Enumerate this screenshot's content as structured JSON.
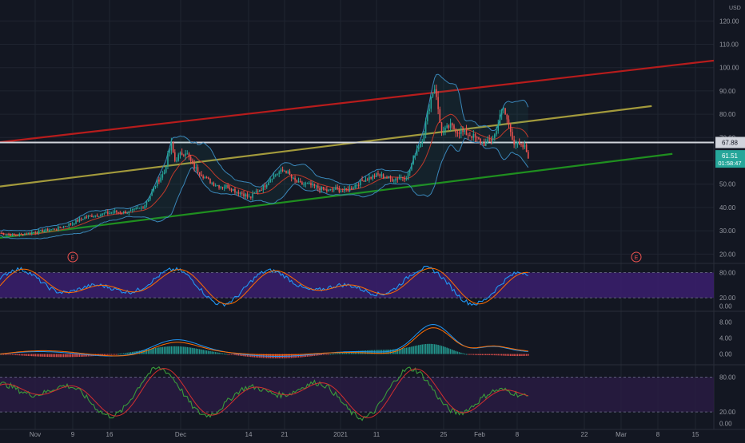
{
  "chart_data": {
    "type": "candlestick",
    "currency": "USD",
    "price_axis": {
      "ticks": [
        "20.00",
        "30.00",
        "40.00",
        "50.00",
        "60.00",
        "70.00",
        "80.00",
        "90.00",
        "100.00",
        "110.00",
        "120.00"
      ],
      "range": [
        16,
        129
      ]
    },
    "time_axis": {
      "labels": [
        "Nov",
        "9",
        "16",
        "Dec",
        "14",
        "21",
        "2021",
        "11",
        "25",
        "Feb",
        "8",
        "22",
        "Mar",
        "8",
        "15"
      ]
    },
    "price_badges": {
      "current_price": "61.51",
      "countdown": "01:58:47",
      "horizontal_line_price": "67.88"
    },
    "earnings_markers": [
      "E",
      "E"
    ],
    "trend_lines": [
      {
        "name": "red-channel-top",
        "from": [
          0.0,
          68.0
        ],
        "to": [
          1.0,
          103.0
        ],
        "color": "#b71c1c"
      },
      {
        "name": "olive-channel-mid",
        "from": [
          0.0,
          49.0
        ],
        "to": [
          0.913,
          83.5
        ],
        "color": "#a39a3c"
      },
      {
        "name": "green-channel-low",
        "from": [
          0.0,
          27.0
        ],
        "to": [
          0.942,
          63.0
        ],
        "color": "#1f8f1f"
      },
      {
        "name": "horizontal-level",
        "price": 67.88,
        "color": "#d1d4dc"
      }
    ],
    "series_close_path": [
      [
        0.0,
        29
      ],
      [
        0.02,
        28
      ],
      [
        0.04,
        29
      ],
      [
        0.06,
        30
      ],
      [
        0.08,
        31
      ],
      [
        0.1,
        33
      ],
      [
        0.12,
        36
      ],
      [
        0.14,
        37
      ],
      [
        0.16,
        38
      ],
      [
        0.18,
        38
      ],
      [
        0.2,
        40
      ],
      [
        0.21,
        45
      ],
      [
        0.22,
        51
      ],
      [
        0.23,
        55
      ],
      [
        0.235,
        62
      ],
      [
        0.24,
        67
      ],
      [
        0.245,
        60
      ],
      [
        0.25,
        62
      ],
      [
        0.26,
        64
      ],
      [
        0.27,
        58
      ],
      [
        0.28,
        55
      ],
      [
        0.29,
        52
      ],
      [
        0.3,
        50
      ],
      [
        0.31,
        49
      ],
      [
        0.32,
        49
      ],
      [
        0.33,
        47
      ],
      [
        0.34,
        46
      ],
      [
        0.35,
        44
      ],
      [
        0.36,
        47
      ],
      [
        0.37,
        49
      ],
      [
        0.38,
        53
      ],
      [
        0.39,
        55
      ],
      [
        0.4,
        56
      ],
      [
        0.41,
        52
      ],
      [
        0.42,
        50
      ],
      [
        0.43,
        50
      ],
      [
        0.44,
        49
      ],
      [
        0.45,
        48
      ],
      [
        0.46,
        47
      ],
      [
        0.47,
        48
      ],
      [
        0.48,
        47
      ],
      [
        0.49,
        48
      ],
      [
        0.5,
        50
      ],
      [
        0.51,
        52
      ],
      [
        0.52,
        53
      ],
      [
        0.53,
        54
      ],
      [
        0.54,
        53
      ],
      [
        0.55,
        52
      ],
      [
        0.56,
        53
      ],
      [
        0.57,
        53
      ],
      [
        0.575,
        57
      ],
      [
        0.58,
        62
      ],
      [
        0.585,
        66
      ],
      [
        0.59,
        68
      ],
      [
        0.595,
        74
      ],
      [
        0.6,
        82
      ],
      [
        0.605,
        89
      ],
      [
        0.61,
        92
      ],
      [
        0.615,
        78
      ],
      [
        0.62,
        72
      ],
      [
        0.63,
        75
      ],
      [
        0.64,
        73
      ],
      [
        0.65,
        72
      ],
      [
        0.66,
        71
      ],
      [
        0.67,
        69
      ],
      [
        0.68,
        67
      ],
      [
        0.69,
        70
      ],
      [
        0.695,
        72
      ],
      [
        0.7,
        80
      ],
      [
        0.705,
        82
      ],
      [
        0.71,
        78
      ],
      [
        0.715,
        73
      ],
      [
        0.72,
        68
      ],
      [
        0.73,
        66
      ],
      [
        0.735,
        66
      ],
      [
        0.74,
        62
      ]
    ],
    "indicators": [
      {
        "name": "stochastic-rsi-1",
        "ticks": [
          "0.00",
          "20.00",
          "80.00"
        ],
        "band": [
          20,
          80
        ]
      },
      {
        "name": "macd",
        "ticks": [
          "0.00",
          "4.00",
          "8.00"
        ]
      },
      {
        "name": "stochastic-rsi-2",
        "ticks": [
          "0.00",
          "20.00",
          "80.00"
        ],
        "band": [
          20,
          80
        ]
      }
    ]
  }
}
